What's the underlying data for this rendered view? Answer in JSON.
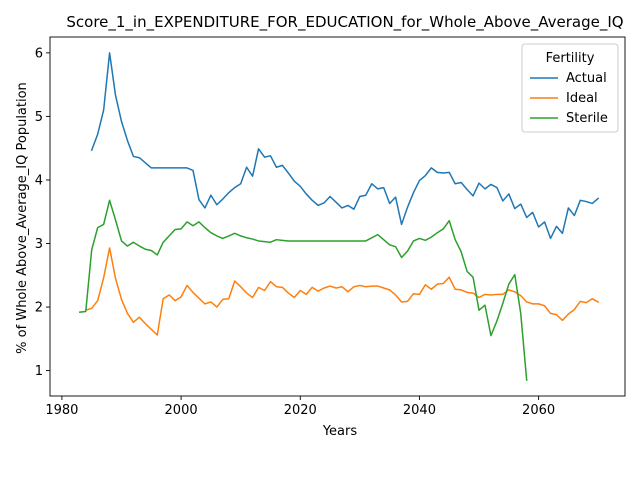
{
  "chart_data": {
    "type": "line",
    "title": "Score_1_in_EXPENDITURE_FOR_EDUCATION_for_Whole_Above_Average_IQ",
    "xlabel": "Years",
    "ylabel": "% of Whole Above_Average_IQ Population",
    "xlim": [
      1978,
      2074.5
    ],
    "ylim": [
      0.6,
      6.25
    ],
    "xticks": [
      1980,
      2000,
      2020,
      2040,
      2060
    ],
    "yticks": [
      1,
      2,
      3,
      4,
      5,
      6
    ],
    "grid": false,
    "legend": {
      "title": "Fertility",
      "placement": "top-right"
    },
    "series": [
      {
        "name": "Actual",
        "color": "#1f77b4",
        "points": [
          [
            1985,
            4.47
          ],
          [
            1986,
            4.72
          ],
          [
            1987,
            5.1
          ],
          [
            1988,
            6.0
          ],
          [
            1989,
            5.33
          ],
          [
            1990,
            4.92
          ],
          [
            1991,
            4.62
          ],
          [
            1992,
            4.37
          ],
          [
            1993,
            4.35
          ],
          [
            1994,
            4.27
          ],
          [
            1995,
            4.19
          ],
          [
            1996,
            4.19
          ],
          [
            1997,
            4.19
          ],
          [
            1998,
            4.19
          ],
          [
            1999,
            4.19
          ],
          [
            2000,
            4.19
          ],
          [
            2001,
            4.19
          ],
          [
            2002,
            4.15
          ],
          [
            2003,
            3.69
          ],
          [
            2004,
            3.56
          ],
          [
            2005,
            3.76
          ],
          [
            2006,
            3.61
          ],
          [
            2007,
            3.7
          ],
          [
            2008,
            3.8
          ],
          [
            2009,
            3.88
          ],
          [
            2010,
            3.94
          ],
          [
            2011,
            4.2
          ],
          [
            2012,
            4.06
          ],
          [
            2013,
            4.49
          ],
          [
            2014,
            4.36
          ],
          [
            2015,
            4.38
          ],
          [
            2016,
            4.2
          ],
          [
            2017,
            4.23
          ],
          [
            2018,
            4.11
          ],
          [
            2019,
            3.98
          ],
          [
            2020,
            3.9
          ],
          [
            2021,
            3.78
          ],
          [
            2022,
            3.68
          ],
          [
            2023,
            3.6
          ],
          [
            2024,
            3.64
          ],
          [
            2025,
            3.74
          ],
          [
            2026,
            3.65
          ],
          [
            2027,
            3.56
          ],
          [
            2028,
            3.6
          ],
          [
            2029,
            3.54
          ],
          [
            2030,
            3.74
          ],
          [
            2031,
            3.76
          ],
          [
            2032,
            3.94
          ],
          [
            2033,
            3.86
          ],
          [
            2034,
            3.88
          ],
          [
            2035,
            3.63
          ],
          [
            2036,
            3.73
          ],
          [
            2037,
            3.3
          ],
          [
            2038,
            3.57
          ],
          [
            2039,
            3.8
          ],
          [
            2040,
            3.99
          ],
          [
            2041,
            4.07
          ],
          [
            2042,
            4.19
          ],
          [
            2043,
            4.12
          ],
          [
            2044,
            4.11
          ],
          [
            2045,
            4.12
          ],
          [
            2046,
            3.94
          ],
          [
            2047,
            3.96
          ],
          [
            2048,
            3.85
          ],
          [
            2049,
            3.75
          ],
          [
            2050,
            3.95
          ],
          [
            2051,
            3.86
          ],
          [
            2052,
            3.93
          ],
          [
            2053,
            3.88
          ],
          [
            2054,
            3.67
          ],
          [
            2055,
            3.78
          ],
          [
            2056,
            3.55
          ],
          [
            2057,
            3.62
          ],
          [
            2058,
            3.41
          ],
          [
            2059,
            3.49
          ],
          [
            2060,
            3.26
          ],
          [
            2061,
            3.34
          ],
          [
            2062,
            3.08
          ],
          [
            2063,
            3.27
          ],
          [
            2064,
            3.16
          ],
          [
            2065,
            3.56
          ],
          [
            2066,
            3.44
          ],
          [
            2067,
            3.68
          ],
          [
            2068,
            3.66
          ],
          [
            2069,
            3.63
          ],
          [
            2070,
            3.71
          ]
        ]
      },
      {
        "name": "Ideal",
        "color": "#ff7f0e",
        "points": [
          [
            1984,
            1.95
          ],
          [
            1985,
            1.98
          ],
          [
            1986,
            2.1
          ],
          [
            1987,
            2.46
          ],
          [
            1988,
            2.93
          ],
          [
            1989,
            2.45
          ],
          [
            1990,
            2.12
          ],
          [
            1991,
            1.9
          ],
          [
            1992,
            1.76
          ],
          [
            1993,
            1.84
          ],
          [
            1994,
            1.74
          ],
          [
            1995,
            1.65
          ],
          [
            1996,
            1.56
          ],
          [
            1997,
            2.13
          ],
          [
            1998,
            2.19
          ],
          [
            1999,
            2.1
          ],
          [
            2000,
            2.16
          ],
          [
            2001,
            2.34
          ],
          [
            2002,
            2.23
          ],
          [
            2003,
            2.14
          ],
          [
            2004,
            2.05
          ],
          [
            2005,
            2.08
          ],
          [
            2006,
            2.0
          ],
          [
            2007,
            2.12
          ],
          [
            2008,
            2.13
          ],
          [
            2009,
            2.41
          ],
          [
            2010,
            2.32
          ],
          [
            2011,
            2.22
          ],
          [
            2012,
            2.15
          ],
          [
            2013,
            2.31
          ],
          [
            2014,
            2.26
          ],
          [
            2015,
            2.4
          ],
          [
            2016,
            2.32
          ],
          [
            2017,
            2.31
          ],
          [
            2018,
            2.22
          ],
          [
            2019,
            2.15
          ],
          [
            2020,
            2.26
          ],
          [
            2021,
            2.2
          ],
          [
            2022,
            2.31
          ],
          [
            2023,
            2.25
          ],
          [
            2024,
            2.3
          ],
          [
            2025,
            2.33
          ],
          [
            2026,
            2.3
          ],
          [
            2027,
            2.32
          ],
          [
            2028,
            2.24
          ],
          [
            2029,
            2.32
          ],
          [
            2030,
            2.34
          ],
          [
            2031,
            2.32
          ],
          [
            2032,
            2.33
          ],
          [
            2033,
            2.33
          ],
          [
            2034,
            2.3
          ],
          [
            2035,
            2.27
          ],
          [
            2036,
            2.19
          ],
          [
            2037,
            2.08
          ],
          [
            2038,
            2.09
          ],
          [
            2039,
            2.21
          ],
          [
            2040,
            2.2
          ],
          [
            2041,
            2.35
          ],
          [
            2042,
            2.28
          ],
          [
            2043,
            2.36
          ],
          [
            2044,
            2.37
          ],
          [
            2045,
            2.47
          ],
          [
            2046,
            2.28
          ],
          [
            2047,
            2.27
          ],
          [
            2048,
            2.23
          ],
          [
            2049,
            2.22
          ],
          [
            2050,
            2.15
          ],
          [
            2051,
            2.2
          ],
          [
            2052,
            2.19
          ],
          [
            2053,
            2.2
          ],
          [
            2054,
            2.2
          ],
          [
            2055,
            2.27
          ],
          [
            2056,
            2.24
          ],
          [
            2057,
            2.18
          ],
          [
            2058,
            2.08
          ],
          [
            2059,
            2.05
          ],
          [
            2060,
            2.05
          ],
          [
            2061,
            2.02
          ],
          [
            2062,
            1.9
          ],
          [
            2063,
            1.88
          ],
          [
            2064,
            1.79
          ],
          [
            2065,
            1.89
          ],
          [
            2066,
            1.96
          ],
          [
            2067,
            2.09
          ],
          [
            2068,
            2.07
          ],
          [
            2069,
            2.13
          ],
          [
            2070,
            2.08
          ]
        ]
      },
      {
        "name": "Sterile",
        "color": "#2ca02c",
        "points": [
          [
            1983,
            1.92
          ],
          [
            1984,
            1.93
          ],
          [
            1985,
            2.9
          ],
          [
            1986,
            3.25
          ],
          [
            1987,
            3.3
          ],
          [
            1988,
            3.68
          ],
          [
            1989,
            3.37
          ],
          [
            1990,
            3.04
          ],
          [
            1991,
            2.96
          ],
          [
            1992,
            3.02
          ],
          [
            1993,
            2.96
          ],
          [
            1994,
            2.91
          ],
          [
            1995,
            2.89
          ],
          [
            1996,
            2.82
          ],
          [
            1997,
            3.02
          ],
          [
            1998,
            3.12
          ],
          [
            1999,
            3.22
          ],
          [
            2000,
            3.23
          ],
          [
            2001,
            3.34
          ],
          [
            2002,
            3.28
          ],
          [
            2003,
            3.34
          ],
          [
            2004,
            3.25
          ],
          [
            2005,
            3.17
          ],
          [
            2006,
            3.12
          ],
          [
            2007,
            3.08
          ],
          [
            2008,
            3.12
          ],
          [
            2009,
            3.16
          ],
          [
            2010,
            3.12
          ],
          [
            2011,
            3.09
          ],
          [
            2012,
            3.07
          ],
          [
            2013,
            3.04
          ],
          [
            2014,
            3.03
          ],
          [
            2015,
            3.02
          ],
          [
            2016,
            3.06
          ],
          [
            2017,
            3.05
          ],
          [
            2018,
            3.04
          ],
          [
            2019,
            3.04
          ],
          [
            2020,
            3.04
          ],
          [
            2021,
            3.04
          ],
          [
            2022,
            3.04
          ],
          [
            2023,
            3.04
          ],
          [
            2024,
            3.04
          ],
          [
            2025,
            3.04
          ],
          [
            2026,
            3.04
          ],
          [
            2027,
            3.04
          ],
          [
            2028,
            3.04
          ],
          [
            2029,
            3.04
          ],
          [
            2030,
            3.04
          ],
          [
            2031,
            3.04
          ],
          [
            2032,
            3.09
          ],
          [
            2033,
            3.14
          ],
          [
            2034,
            3.06
          ],
          [
            2035,
            2.98
          ],
          [
            2036,
            2.95
          ],
          [
            2037,
            2.78
          ],
          [
            2038,
            2.88
          ],
          [
            2039,
            3.04
          ],
          [
            2040,
            3.08
          ],
          [
            2041,
            3.05
          ],
          [
            2042,
            3.1
          ],
          [
            2043,
            3.17
          ],
          [
            2044,
            3.23
          ],
          [
            2045,
            3.36
          ],
          [
            2046,
            3.06
          ],
          [
            2047,
            2.87
          ],
          [
            2048,
            2.56
          ],
          [
            2049,
            2.47
          ],
          [
            2050,
            1.95
          ],
          [
            2051,
            2.03
          ],
          [
            2052,
            1.55
          ],
          [
            2053,
            1.78
          ],
          [
            2054,
            2.06
          ],
          [
            2055,
            2.36
          ],
          [
            2056,
            2.51
          ],
          [
            2057,
            1.9
          ],
          [
            2058,
            0.85
          ]
        ]
      }
    ]
  }
}
